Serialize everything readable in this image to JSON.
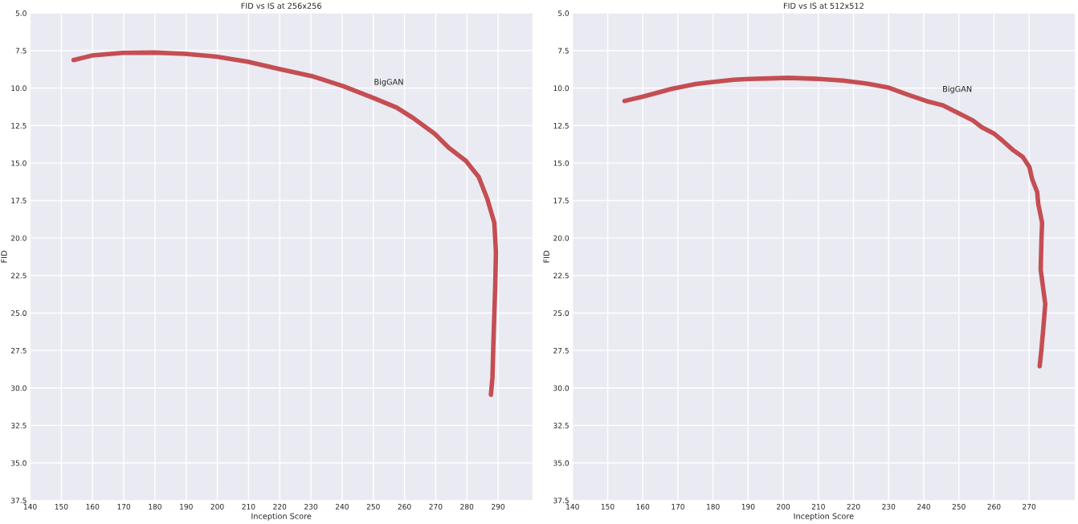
{
  "chart_data": [
    {
      "type": "line",
      "title": "FID vs IS at 256x256",
      "xlabel": "Inception Score",
      "ylabel": "FID",
      "x": [
        153.9,
        159.8,
        169.8,
        179.8,
        189.7,
        199.7,
        209.7,
        220.0,
        230.3,
        240.3,
        250.2,
        257.5,
        263.0,
        269.7,
        274.1,
        279.7,
        283.8,
        286.5,
        288.8,
        289.3,
        289.3,
        289.1,
        288.5,
        288.2,
        287.7
      ],
      "series": [
        {
          "name": "BigGAN",
          "color": "#c44e52",
          "values": [
            8.13,
            7.83,
            7.65,
            7.63,
            7.72,
            7.9,
            8.24,
            8.74,
            9.2,
            9.87,
            10.67,
            11.3,
            12.03,
            13.05,
            13.96,
            14.86,
            15.93,
            17.36,
            18.99,
            20.87,
            21.1,
            23.1,
            27.0,
            29.3,
            30.45
          ]
        }
      ],
      "xlim": [
        140,
        301
      ],
      "xticks": [
        140,
        150,
        160,
        170,
        180,
        190,
        200,
        210,
        220,
        230,
        240,
        250,
        260,
        270,
        280,
        290
      ],
      "ylim": [
        37.5,
        5.0
      ],
      "yticks": [
        {
          "value": 5,
          "label": "5.0"
        },
        {
          "value": 7.5,
          "label": "7.5"
        },
        {
          "value": 10,
          "label": "10.0"
        },
        {
          "value": 12.5,
          "label": "12.5"
        },
        {
          "value": 15,
          "label": "15.0"
        },
        {
          "value": 17.5,
          "label": "17.5"
        },
        {
          "value": 20,
          "label": "20.0"
        },
        {
          "value": 22.5,
          "label": "22.5"
        },
        {
          "value": 25,
          "label": "25.0"
        },
        {
          "value": 27.5,
          "label": "27.5"
        },
        {
          "value": 30,
          "label": "30.0"
        },
        {
          "value": 32.5,
          "label": "32.5"
        },
        {
          "value": 35,
          "label": "35.0"
        },
        {
          "value": 37.5,
          "label": "37.5"
        }
      ],
      "grid": true
    },
    {
      "type": "line",
      "title": "FID vs IS at 512x512",
      "xlabel": "Inception Score",
      "ylabel": "FID",
      "x": [
        154.8,
        160.0,
        168.3,
        175.1,
        180.0,
        185.8,
        190.2,
        195.6,
        201.4,
        210.2,
        217.0,
        223.8,
        229.7,
        235.5,
        241.4,
        245.3,
        250.1,
        254.0,
        256.5,
        259.9,
        262.3,
        265.2,
        268.2,
        270.1,
        270.8,
        272.3,
        272.6,
        273.7,
        273.5,
        273.3,
        274.6,
        274.1,
        273.5,
        273.0
      ],
      "series": [
        {
          "name": "BigGAN",
          "color": "#c44e52",
          "values": [
            10.86,
            10.57,
            10.05,
            9.73,
            9.59,
            9.45,
            9.39,
            9.36,
            9.32,
            9.39,
            9.5,
            9.7,
            9.95,
            10.45,
            10.91,
            11.14,
            11.7,
            12.16,
            12.61,
            13.02,
            13.48,
            14.09,
            14.59,
            15.27,
            16.02,
            16.93,
            17.73,
            18.98,
            20.18,
            22.11,
            24.39,
            25.86,
            27.45,
            28.55
          ]
        }
      ],
      "xlim": [
        140,
        283
      ],
      "xticks": [
        140,
        150,
        160,
        170,
        180,
        190,
        200,
        210,
        220,
        230,
        240,
        250,
        260,
        270
      ],
      "ylim": [
        37.5,
        5.0
      ],
      "yticks": [
        {
          "value": 5,
          "label": "5.0"
        },
        {
          "value": 7.5,
          "label": "7.5"
        },
        {
          "value": 10,
          "label": "10.0"
        },
        {
          "value": 12.5,
          "label": "12.5"
        },
        {
          "value": 15,
          "label": "15.0"
        },
        {
          "value": 17.5,
          "label": "17.5"
        },
        {
          "value": 20,
          "label": "20.0"
        },
        {
          "value": 22.5,
          "label": "22.5"
        },
        {
          "value": 25,
          "label": "25.0"
        },
        {
          "value": 27.5,
          "label": "27.5"
        },
        {
          "value": 30,
          "label": "30.0"
        },
        {
          "value": 32.5,
          "label": "32.5"
        },
        {
          "value": 35,
          "label": "35.0"
        },
        {
          "value": 37.5,
          "label": "37.5"
        }
      ],
      "grid": true
    }
  ]
}
